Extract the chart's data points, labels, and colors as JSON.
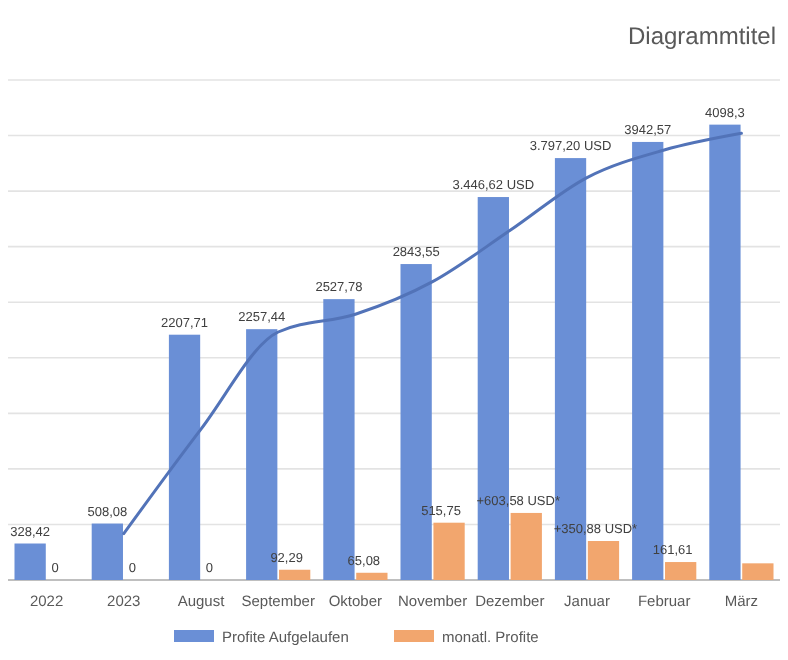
{
  "chart_data": {
    "type": "bar",
    "title": "Diagrammtitel",
    "categories": [
      "2022",
      "2023",
      "August",
      "September",
      "Oktober",
      "November",
      "Dezember",
      "Januar",
      "Februar",
      "März"
    ],
    "series": [
      {
        "name": "Profite Aufgelaufen",
        "color": "#6a8fd6",
        "values": [
          328.42,
          508.08,
          2207.71,
          2257.44,
          2527.78,
          2843.55,
          3446.62,
          3797.2,
          3942.57,
          4098.3
        ],
        "value_labels": [
          "328,42",
          "508,08",
          "2207,71",
          "2257,44",
          "2527,78",
          "2843,55",
          "3.446,62 USD",
          "3.797,20 USD",
          "3942,57",
          "4098,3"
        ]
      },
      {
        "name": "monatl. Profite",
        "color": "#f2a66e",
        "values": [
          0,
          0,
          0,
          92.29,
          65.08,
          515.75,
          603.58,
          350.88,
          161.61,
          150
        ],
        "value_labels": [
          "0",
          "0",
          "0",
          "92,29",
          "65,08",
          "515,75",
          "+603,58 USD*",
          "+350,88 USD*",
          "161,61",
          null
        ]
      },
      {
        "type": "line",
        "color": "#5273b8",
        "values": [
          null,
          418,
          1358,
          2232,
          2392,
          2685,
          3145,
          3622,
          3870,
          4020
        ]
      }
    ],
    "ylim": [
      0,
      4500
    ],
    "yticks": [
      {
        "value": 0,
        "label": null
      },
      {
        "value": 500,
        "label": null
      },
      {
        "value": 1000,
        "label": null
      },
      {
        "value": 1500,
        "label": null
      },
      {
        "value": 2000,
        "label": null
      },
      {
        "value": 2500,
        "label": null
      },
      {
        "value": 3000,
        "label": null
      },
      {
        "value": 3500,
        "label": null
      },
      {
        "value": 4000,
        "label": null
      },
      {
        "value": 4500,
        "label": null
      }
    ],
    "tick_labels": "x",
    "grid": "y",
    "legend": "bottom",
    "marker": "none",
    "line_style": "solid"
  }
}
